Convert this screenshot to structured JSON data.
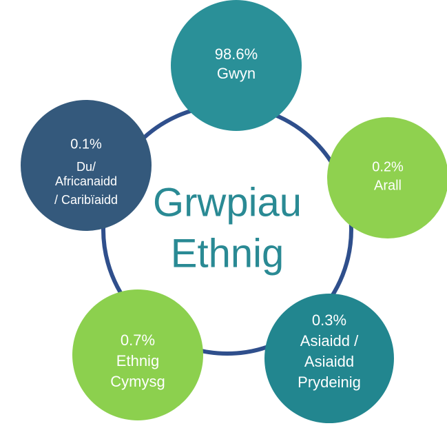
{
  "title": [
    "Grwpiau",
    "Ethnig"
  ],
  "nodes": [
    {
      "value": "98.6%",
      "label": [
        "Gwyn"
      ]
    },
    {
      "value": "0.2%",
      "label": [
        "Arall"
      ]
    },
    {
      "value": "0.3%",
      "label": [
        "Asiaidd /",
        "Asiaidd",
        "Prydeinig"
      ]
    },
    {
      "value": "0.7%",
      "label": [
        "Ethnig",
        "Cymysg"
      ]
    },
    {
      "value": "0.1%",
      "label": [
        "Du/",
        "Africanaidd",
        "/ Caribïaidd"
      ]
    }
  ]
}
